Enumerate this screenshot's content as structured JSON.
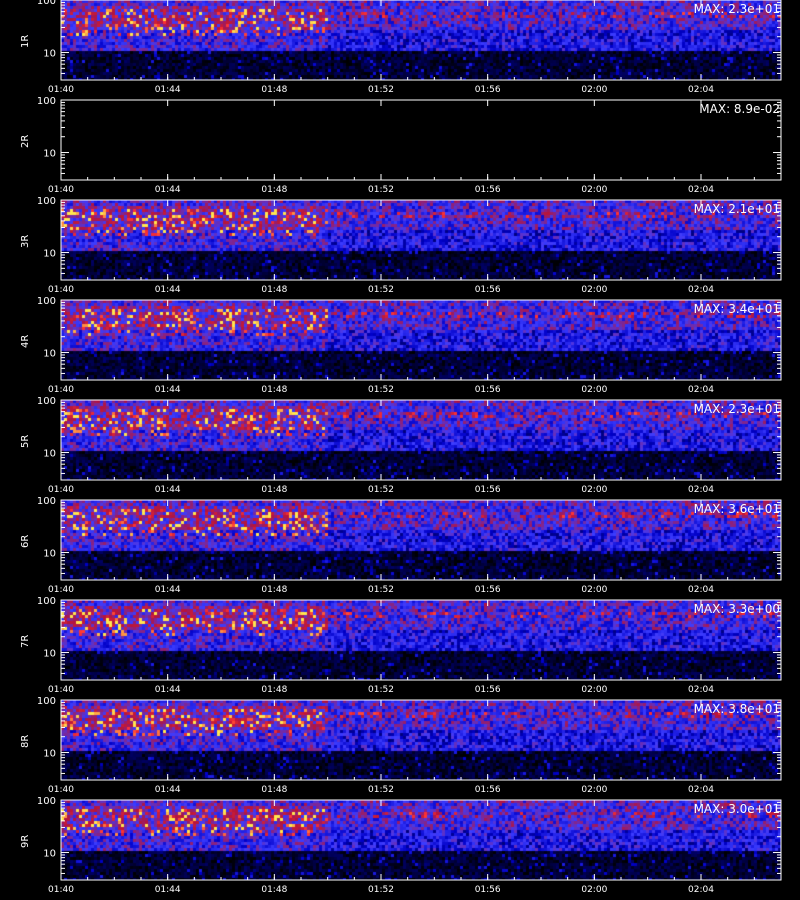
{
  "chart_data": {
    "type": "heatmap",
    "x_ticks": [
      "01:40",
      "01:44",
      "01:48",
      "01:52",
      "01:56",
      "02:00",
      "02:04"
    ],
    "xlim": [
      "01:40",
      "02:07"
    ],
    "y_ticks": [
      "100",
      "10"
    ],
    "yscale": "log",
    "ylim": [
      3,
      100
    ],
    "x_title": "",
    "colormap": [
      "#000000",
      "#0000c8",
      "#3c3cff",
      "#b4143c",
      "#ff3232",
      "#ffe650"
    ],
    "panels": [
      {
        "label": "1R",
        "max_label": "MAX: 2.3e+01",
        "max": 23
      },
      {
        "label": "2R",
        "max_label": "MAX: 8.9e-02",
        "max": 0.089
      },
      {
        "label": "3R",
        "max_label": "MAX: 2.1e+01",
        "max": 21
      },
      {
        "label": "4R",
        "max_label": "MAX: 3.4e+01",
        "max": 34
      },
      {
        "label": "5R",
        "max_label": "MAX: 2.3e+01",
        "max": 23
      },
      {
        "label": "6R",
        "max_label": "MAX: 3.6e+01",
        "max": 36
      },
      {
        "label": "7R",
        "max_label": "MAX: 3.3e+00",
        "max": 3.3
      },
      {
        "label": "8R",
        "max_label": "MAX: 3.8e+01",
        "max": 38
      },
      {
        "label": "9R",
        "max_label": "MAX: 3.0e+01",
        "max": 30
      }
    ]
  }
}
